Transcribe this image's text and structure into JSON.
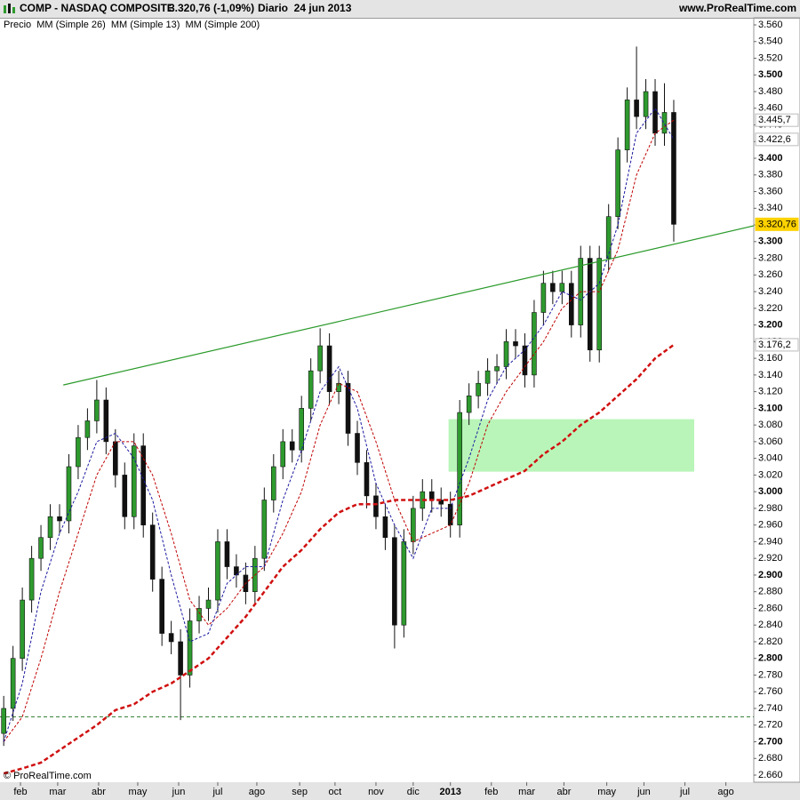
{
  "chart_data": {
    "type": "candlestick",
    "header": {
      "symbol": "COMP - NASDAQ COMPOSITE",
      "price_text": "3.320,76 (-1,09%)",
      "period": "Diario  24 jun 2013",
      "site": "www.ProRealTime.com"
    },
    "copyright": "© ProRealTime.com",
    "xlim": [
      -2,
      403
    ],
    "ylim": [
      2660,
      3560
    ],
    "xticks": [
      {
        "value": 9,
        "label": "feb"
      },
      {
        "value": 29,
        "label": "mar"
      },
      {
        "value": 51,
        "label": "abr"
      },
      {
        "value": 72,
        "label": "may"
      },
      {
        "value": 94,
        "label": "jun"
      },
      {
        "value": 115,
        "label": "jul"
      },
      {
        "value": 136,
        "label": "ago"
      },
      {
        "value": 159,
        "label": "sep"
      },
      {
        "value": 178,
        "label": "oct"
      },
      {
        "value": 200,
        "label": "nov"
      },
      {
        "value": 220,
        "label": "dic"
      },
      {
        "value": 240,
        "label": "2013"
      },
      {
        "value": 262,
        "label": "feb"
      },
      {
        "value": 281,
        "label": "mar"
      },
      {
        "value": 301,
        "label": "abr"
      },
      {
        "value": 324,
        "label": "may"
      },
      {
        "value": 344,
        "label": "jun"
      },
      {
        "value": 366,
        "label": "jul"
      },
      {
        "value": 388,
        "label": "ago"
      }
    ],
    "yticks": [
      {
        "value": 3560,
        "label": "3.560"
      },
      {
        "value": 3540,
        "label": "3.540"
      },
      {
        "value": 3520,
        "label": "3.520"
      },
      {
        "value": 3500,
        "label": "3.500"
      },
      {
        "value": 3480,
        "label": "3.480"
      },
      {
        "value": 3460,
        "label": "3.460"
      },
      {
        "value": 3440,
        "label": "3.440"
      },
      {
        "value": 3420,
        "label": "3.420"
      },
      {
        "value": 3400,
        "label": "3.400"
      },
      {
        "value": 3380,
        "label": "3.380"
      },
      {
        "value": 3360,
        "label": "3.360"
      },
      {
        "value": 3340,
        "label": "3.340"
      },
      {
        "value": 3320,
        "label": "3.320"
      },
      {
        "value": 3300,
        "label": "3.300"
      },
      {
        "value": 3280,
        "label": "3.280"
      },
      {
        "value": 3260,
        "label": "3.260"
      },
      {
        "value": 3240,
        "label": "3.240"
      },
      {
        "value": 3220,
        "label": "3.220"
      },
      {
        "value": 3200,
        "label": "3.200"
      },
      {
        "value": 3180,
        "label": "3.180"
      },
      {
        "value": 3160,
        "label": "3.160"
      },
      {
        "value": 3140,
        "label": "3.140"
      },
      {
        "value": 3120,
        "label": "3.120"
      },
      {
        "value": 3100,
        "label": "3.100"
      },
      {
        "value": 3080,
        "label": "3.080"
      },
      {
        "value": 3060,
        "label": "3.060"
      },
      {
        "value": 3040,
        "label": "3.040"
      },
      {
        "value": 3020,
        "label": "3.020"
      },
      {
        "value": 3000,
        "label": "3.000"
      },
      {
        "value": 2980,
        "label": "2.980"
      },
      {
        "value": 2960,
        "label": "2.960"
      },
      {
        "value": 2940,
        "label": "2.940"
      },
      {
        "value": 2920,
        "label": "2.920"
      },
      {
        "value": 2900,
        "label": "2.900"
      },
      {
        "value": 2880,
        "label": "2.880"
      },
      {
        "value": 2860,
        "label": "2.860"
      },
      {
        "value": 2840,
        "label": "2.840"
      },
      {
        "value": 2820,
        "label": "2.820"
      },
      {
        "value": 2800,
        "label": "2.800"
      },
      {
        "value": 2780,
        "label": "2.780"
      },
      {
        "value": 2760,
        "label": "2.760"
      },
      {
        "value": 2740,
        "label": "2.740"
      },
      {
        "value": 2720,
        "label": "2.720"
      },
      {
        "value": 2700,
        "label": "2.700"
      },
      {
        "value": 2680,
        "label": "2.680"
      },
      {
        "value": 2660,
        "label": "2.660"
      }
    ],
    "series": [
      {
        "name": "Precio",
        "up_color": "#2e9a2e",
        "down_color": "#111111",
        "x": [
          0,
          5,
          10,
          15,
          20,
          25,
          30,
          35,
          40,
          45,
          50,
          55,
          60,
          65,
          70,
          75,
          80,
          85,
          90,
          95,
          100,
          105,
          110,
          115,
          120,
          125,
          130,
          135,
          140,
          145,
          150,
          155,
          160,
          165,
          170,
          175,
          180,
          185,
          190,
          195,
          200,
          205,
          210,
          215,
          220,
          225,
          230,
          235,
          240,
          245,
          250,
          255,
          260,
          265,
          270,
          275,
          280,
          285,
          290,
          295,
          300,
          305,
          310,
          315,
          320,
          325,
          330,
          335,
          340,
          345,
          350,
          355,
          360
        ],
        "open": [
          2710,
          2740,
          2800,
          2870,
          2920,
          2945,
          2970,
          2965,
          3030,
          3065,
          3085,
          3110,
          3060,
          3020,
          2970,
          3055,
          2960,
          2895,
          2830,
          2820,
          2780,
          2845,
          2860,
          2870,
          2940,
          2910,
          2900,
          2880,
          2920,
          2990,
          3030,
          3060,
          3050,
          3100,
          3145,
          3175,
          3120,
          3130,
          3070,
          3035,
          2995,
          2970,
          2945,
          2840,
          2940,
          2980,
          3000,
          2990,
          2985,
          2960,
          3095,
          3115,
          3130,
          3145,
          3150,
          3180,
          3175,
          3140,
          3215,
          3250,
          3240,
          3250,
          3200,
          3280,
          3170,
          3280,
          3330,
          3410,
          3470,
          3450,
          3480,
          3430,
          3455
        ],
        "high": [
          2755,
          2815,
          2885,
          2935,
          2960,
          2985,
          2985,
          3045,
          3080,
          3100,
          3134,
          3125,
          3075,
          3035,
          3070,
          3070,
          2975,
          2910,
          2845,
          2835,
          2860,
          2875,
          2885,
          2955,
          2955,
          2925,
          2915,
          2935,
          3005,
          3045,
          3075,
          3075,
          3115,
          3160,
          3196,
          3190,
          3145,
          3145,
          3085,
          3050,
          3010,
          2985,
          2960,
          2955,
          2995,
          3015,
          3015,
          3005,
          3000,
          3110,
          3130,
          3145,
          3160,
          3165,
          3195,
          3195,
          3190,
          3230,
          3265,
          3265,
          3265,
          3265,
          3295,
          3295,
          3295,
          3345,
          3425,
          3485,
          3534,
          3495,
          3495,
          3490,
          3470
        ],
        "low": [
          2695,
          2725,
          2785,
          2855,
          2905,
          2930,
          2950,
          2950,
          3015,
          3050,
          3070,
          3045,
          3005,
          2955,
          2955,
          2945,
          2880,
          2815,
          2805,
          2726,
          2765,
          2830,
          2845,
          2855,
          2895,
          2885,
          2865,
          2865,
          2905,
          2975,
          3015,
          3035,
          3035,
          3085,
          3130,
          3105,
          3105,
          3055,
          3020,
          2980,
          2955,
          2930,
          2812,
          2825,
          2925,
          2965,
          2975,
          2970,
          2945,
          2945,
          3080,
          3100,
          3115,
          3130,
          3135,
          3160,
          3125,
          3125,
          3200,
          3225,
          3225,
          3185,
          3185,
          3156,
          3155,
          3265,
          3315,
          3395,
          3435,
          3435,
          3415,
          3415,
          3300
        ],
        "close": [
          2740,
          2800,
          2870,
          2920,
          2945,
          2970,
          2965,
          3030,
          3065,
          3085,
          3110,
          3060,
          3020,
          2970,
          3055,
          2960,
          2895,
          2830,
          2820,
          2780,
          2845,
          2860,
          2870,
          2940,
          2910,
          2900,
          2880,
          2920,
          2990,
          3030,
          3060,
          3050,
          3100,
          3145,
          3175,
          3120,
          3130,
          3070,
          3035,
          2995,
          2970,
          2945,
          2840,
          2940,
          2980,
          3000,
          2990,
          2985,
          2960,
          3095,
          3115,
          3130,
          3145,
          3150,
          3180,
          3175,
          3140,
          3215,
          3250,
          3240,
          3250,
          3200,
          3280,
          3170,
          3280,
          3330,
          3410,
          3470,
          3450,
          3480,
          3430,
          3455,
          3320.76
        ],
        "last_value_label": "3.320,76",
        "label_color": "#ffd200"
      },
      {
        "name": "MM (Simple 26)",
        "color": "#c00000",
        "dash": "3,2",
        "x": [
          0,
          10,
          20,
          30,
          40,
          50,
          60,
          70,
          80,
          90,
          100,
          110,
          120,
          130,
          140,
          150,
          160,
          170,
          180,
          190,
          200,
          210,
          220,
          230,
          240,
          250,
          260,
          270,
          280,
          290,
          300,
          310,
          320,
          330,
          340,
          350,
          360
        ],
        "values": [
          2700,
          2730,
          2800,
          2880,
          2950,
          3020,
          3060,
          3060,
          3020,
          2950,
          2870,
          2840,
          2860,
          2890,
          2910,
          2950,
          3000,
          3080,
          3130,
          3120,
          3060,
          2990,
          2940,
          2950,
          2960,
          3010,
          3080,
          3120,
          3150,
          3180,
          3220,
          3240,
          3240,
          3290,
          3380,
          3430,
          3445.7
        ],
        "last_value_label": "3.445,7"
      },
      {
        "name": "MM (Simple 13)",
        "color": "#1a1aa0",
        "dash": "3,2",
        "x": [
          0,
          10,
          20,
          30,
          40,
          50,
          60,
          70,
          80,
          90,
          100,
          110,
          120,
          130,
          140,
          150,
          160,
          170,
          180,
          190,
          200,
          210,
          220,
          230,
          240,
          250,
          260,
          270,
          280,
          290,
          300,
          310,
          320,
          330,
          340,
          350,
          360
        ],
        "values": [
          2700,
          2770,
          2880,
          2950,
          3000,
          3060,
          3070,
          3040,
          2990,
          2900,
          2820,
          2830,
          2890,
          2910,
          2910,
          2990,
          3050,
          3120,
          3150,
          3100,
          3010,
          2960,
          2920,
          2980,
          2980,
          3040,
          3110,
          3150,
          3170,
          3200,
          3240,
          3230,
          3250,
          3320,
          3430,
          3460,
          3422.6
        ],
        "last_value_label": "3.422,6"
      },
      {
        "name": "MM (Simple 200)",
        "color": "#d01010",
        "dash": "5,3",
        "x": [
          0,
          10,
          20,
          30,
          40,
          50,
          60,
          70,
          80,
          90,
          100,
          110,
          120,
          130,
          140,
          150,
          160,
          170,
          180,
          190,
          200,
          210,
          220,
          230,
          240,
          250,
          260,
          270,
          280,
          290,
          300,
          310,
          320,
          330,
          340,
          350,
          360
        ],
        "values": [
          2662,
          2668,
          2675,
          2690,
          2705,
          2720,
          2738,
          2745,
          2760,
          2770,
          2785,
          2800,
          2825,
          2850,
          2880,
          2910,
          2930,
          2955,
          2975,
          2985,
          2985,
          2990,
          2990,
          2990,
          2990,
          2995,
          3005,
          3015,
          3025,
          3045,
          3060,
          3080,
          3095,
          3115,
          3135,
          3160,
          3176.2
        ],
        "last_value_label": "3.176,2"
      }
    ],
    "trendlines": [
      {
        "x": [
          32,
          403
        ],
        "y": [
          3128,
          3319
        ],
        "color": "#2a9a2a"
      }
    ],
    "hlines": [
      {
        "value": 2730,
        "color": "#2a7a2a"
      }
    ],
    "zones": [
      {
        "x": [
          239,
          371
        ],
        "y": [
          3024,
          3087
        ],
        "color": "#b9f5b9"
      }
    ]
  }
}
